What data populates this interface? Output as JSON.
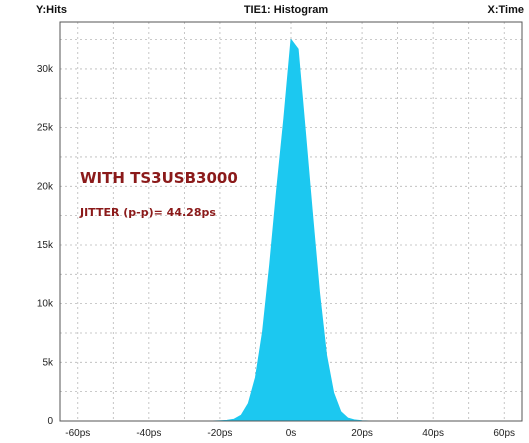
{
  "header": {
    "y_label": "Y:Hits",
    "title": "TIE1: Histogram",
    "x_label": "X:Time"
  },
  "annotations": {
    "line1": "WITH TS3USB3000",
    "line2": "JITTER (p-p)= 44.28ps",
    "color": "#8b1a1a"
  },
  "colors": {
    "fill": "#1cc8f0",
    "grid": "#b8b8b8",
    "frame": "#555555"
  },
  "chart_data": {
    "type": "area",
    "title": "TIE1: Histogram",
    "xlabel": "X:Time",
    "ylabel": "Y:Hits",
    "xlim": [
      -65,
      65
    ],
    "ylim": [
      0,
      34000
    ],
    "x_ticks": [
      -60,
      -40,
      -20,
      0,
      20,
      40,
      60
    ],
    "x_tick_labels": [
      "-60ps",
      "-40ps",
      "-20ps",
      "0s",
      "20ps",
      "40ps",
      "60ps"
    ],
    "y_ticks": [
      0,
      5000,
      10000,
      15000,
      20000,
      25000,
      30000
    ],
    "y_tick_labels": [
      "0",
      "5k",
      "10k",
      "15k",
      "20k",
      "25k",
      "30k"
    ],
    "grid": true,
    "x_grid_values": [
      -60,
      -50,
      -40,
      -30,
      -20,
      -10,
      0,
      10,
      20,
      30,
      40,
      50,
      60
    ],
    "y_grid_values": [
      0,
      2500,
      5000,
      7500,
      10000,
      12500,
      15000,
      17500,
      20000,
      22500,
      25000,
      27500,
      30000,
      32500
    ],
    "series": [
      {
        "x": [
          -22,
          -20,
          -18,
          -16,
          -14,
          -12,
          -10,
          -8,
          -6,
          -4,
          -2,
          0,
          2,
          4,
          6,
          8,
          10,
          12,
          14,
          16,
          18,
          20,
          22
        ],
        "values": [
          0,
          20,
          50,
          150,
          500,
          1500,
          3700,
          7600,
          13300,
          19800,
          25800,
          32500,
          31700,
          24800,
          17800,
          11000,
          5600,
          2400,
          800,
          250,
          80,
          20,
          0
        ]
      }
    ]
  }
}
